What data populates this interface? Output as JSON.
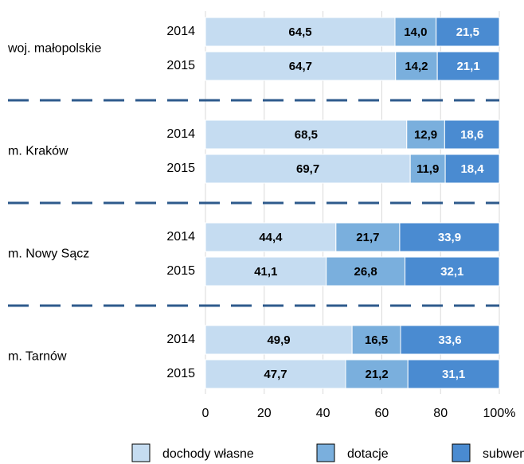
{
  "chart_data": {
    "type": "bar",
    "orientation": "horizontal",
    "stacked": true,
    "groups": [
      {
        "name": "woj. małopolskie",
        "categories": [
          "2014",
          "2015"
        ]
      },
      {
        "name": "m. Kraków",
        "categories": [
          "2014",
          "2015"
        ]
      },
      {
        "name": "m. Nowy Sącz",
        "categories": [
          "2014",
          "2015"
        ]
      },
      {
        "name": "m. Tarnów",
        "categories": [
          "2014",
          "2015"
        ]
      }
    ],
    "series": [
      {
        "name": "dochody własne",
        "color": "#c5dcf1",
        "label_color": "#000000",
        "values": [
          64.5,
          64.7,
          68.5,
          69.7,
          44.4,
          41.1,
          49.9,
          47.7
        ],
        "value_labels": [
          "64,5",
          "64,7",
          "68,5",
          "69,7",
          "44,4",
          "41,1",
          "49,9",
          "47,7"
        ]
      },
      {
        "name": "dotacje",
        "color": "#7aafdd",
        "label_color": "#000000",
        "values": [
          14.0,
          14.2,
          12.9,
          11.9,
          21.7,
          26.8,
          16.5,
          21.2
        ],
        "value_labels": [
          "14,0",
          "14,2",
          "12,9",
          "11,9",
          "21,7",
          "26,8",
          "16,5",
          "21,2"
        ]
      },
      {
        "name": "subwencje",
        "color": "#4a8bd1",
        "label_color": "#ffffff",
        "values": [
          21.5,
          21.1,
          18.6,
          18.4,
          33.9,
          32.1,
          33.6,
          31.1
        ],
        "value_labels": [
          "21,5",
          "21,1",
          "18,6",
          "18,4",
          "33,9",
          "32,1",
          "33,6",
          "31,1"
        ]
      }
    ],
    "xlim": [
      0,
      100
    ],
    "xticks": [
      0,
      20,
      40,
      60,
      80,
      {
        "value": 100,
        "label": "100%"
      }
    ],
    "grid": true
  }
}
